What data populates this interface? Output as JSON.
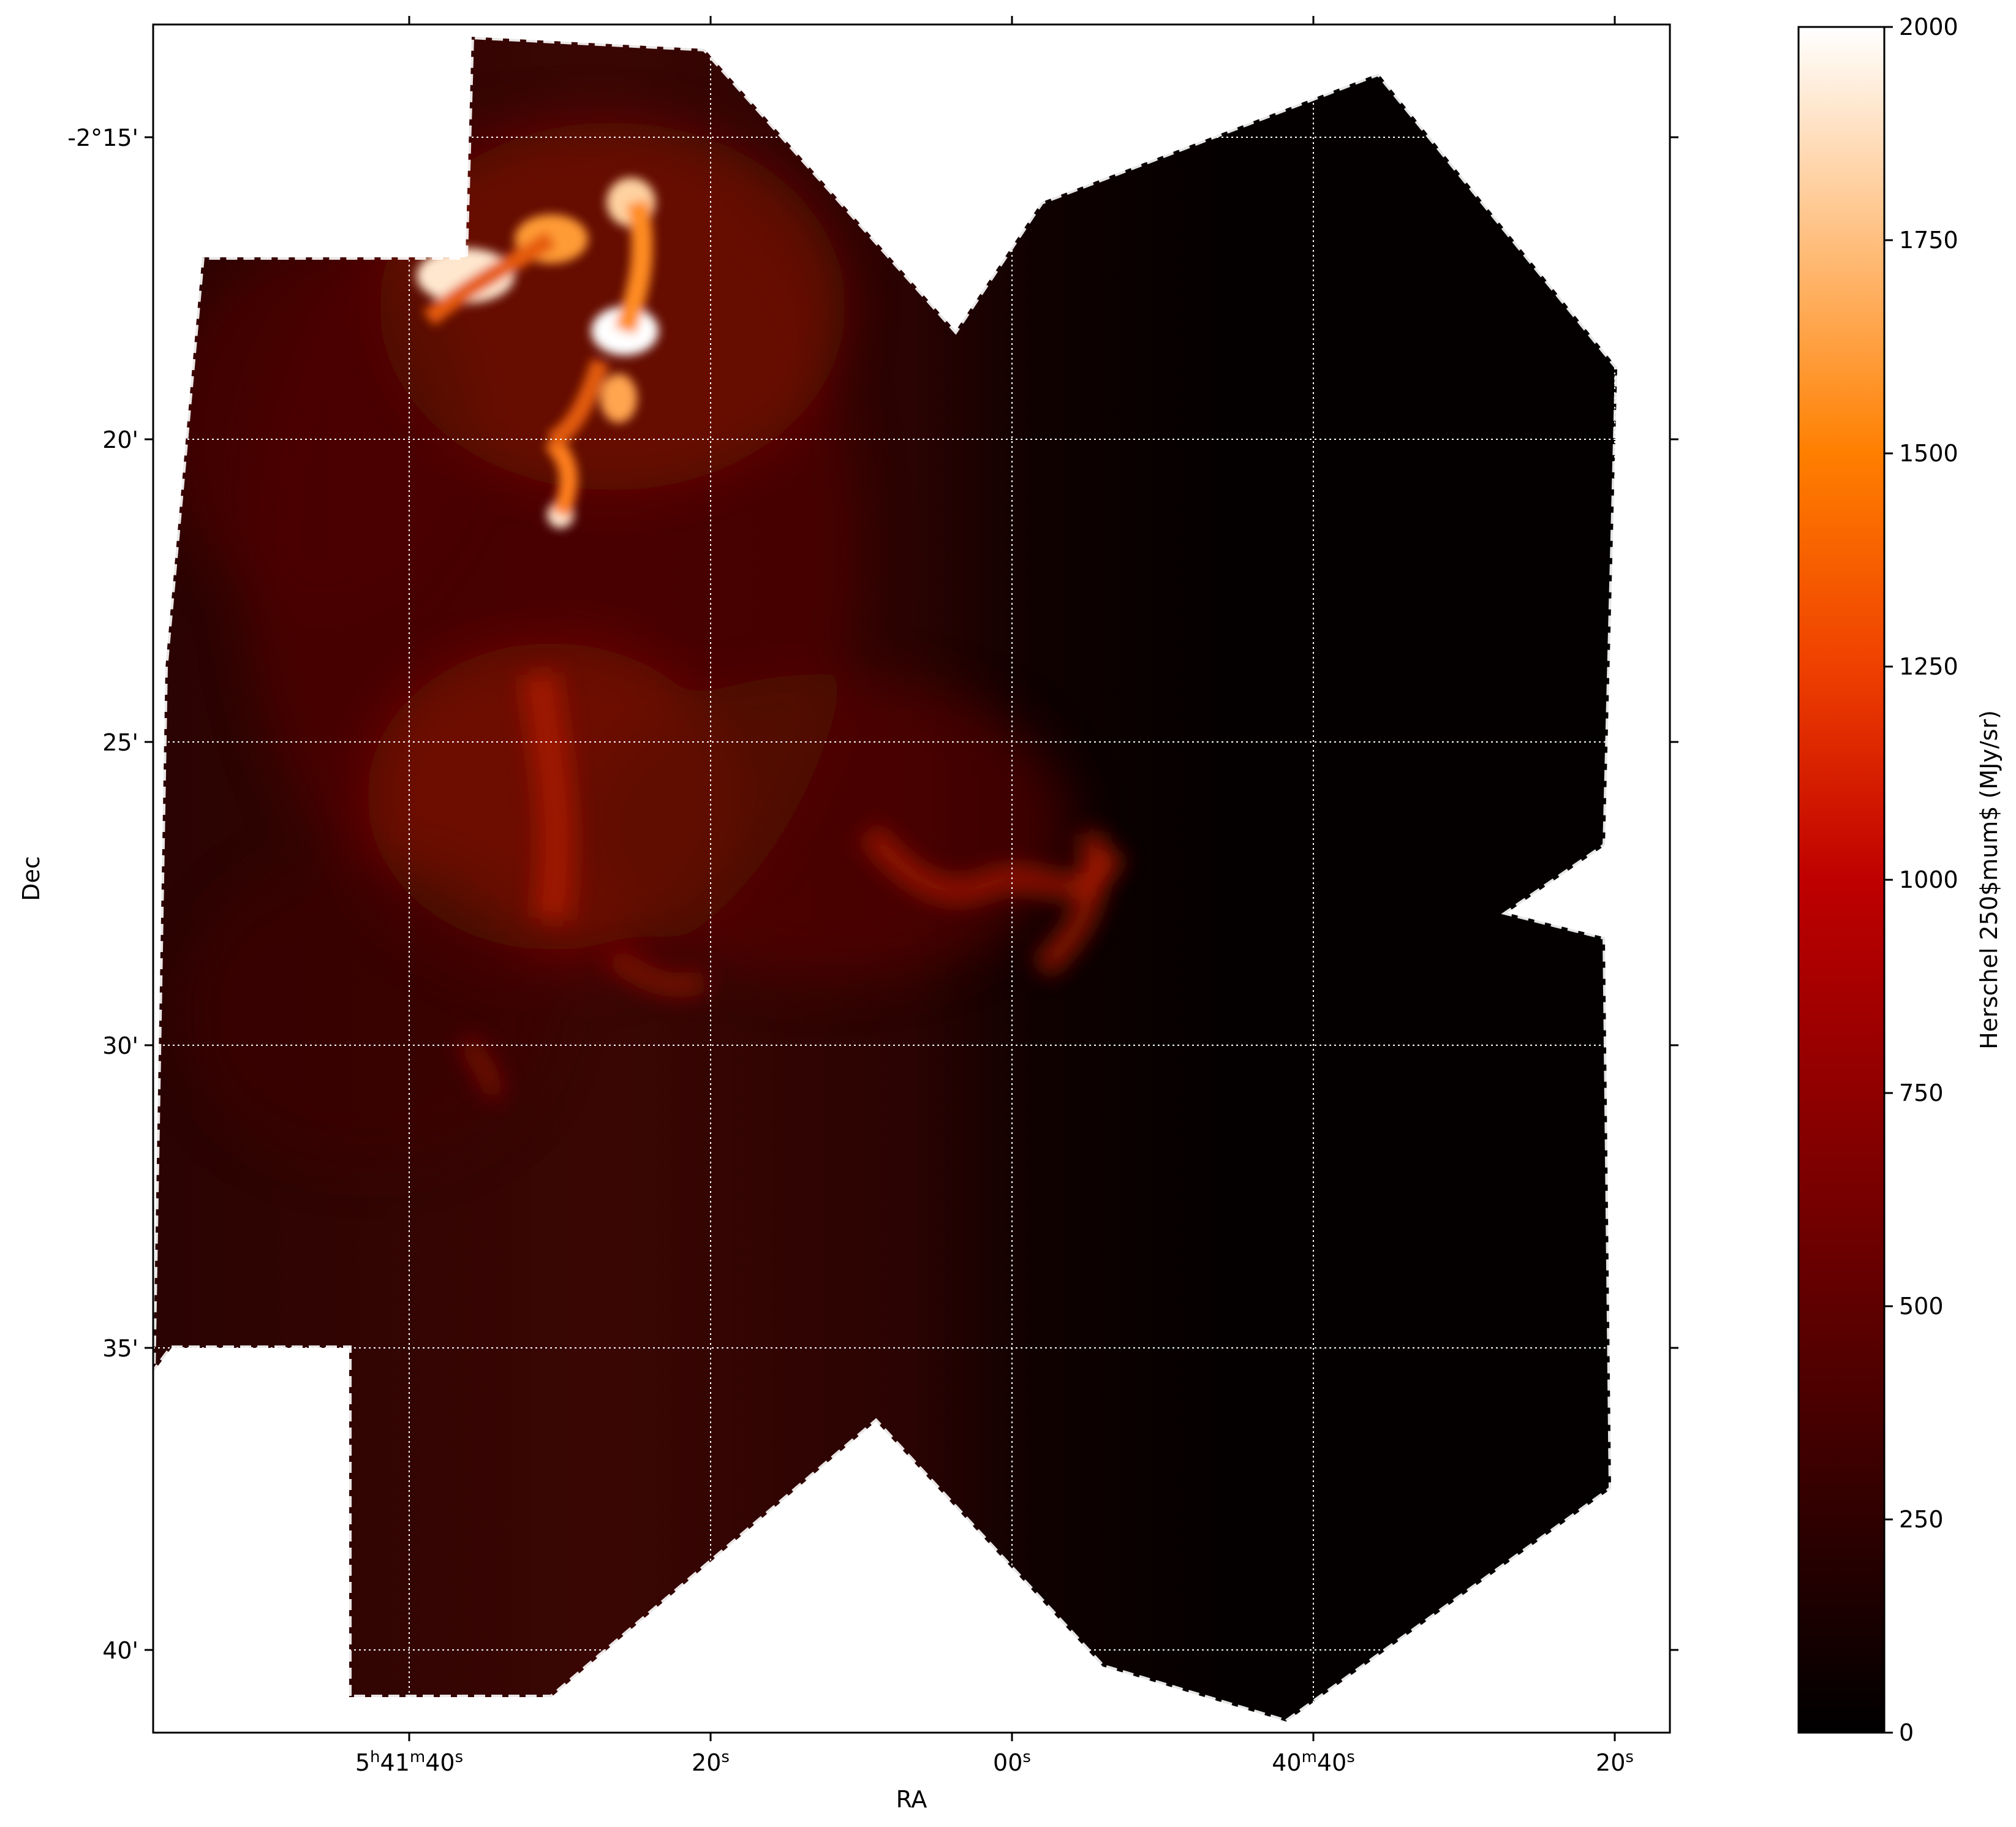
{
  "chart_data": {
    "type": "heatmap",
    "title": "",
    "xlabel": "RA",
    "ylabel": "Dec",
    "colorbar_label": "Herschel 250$mum$ (MJy/sr)",
    "colormap": "gist_heat",
    "colorbar_range": [
      0,
      2000
    ],
    "colorbar_ticks": [
      "0",
      "250",
      "500",
      "750",
      "1000",
      "1250",
      "1500",
      "1750",
      "2000"
    ],
    "x_ticks": [
      {
        "h": "5",
        "m": "41",
        "s": "40",
        "text": "5h41m40s"
      },
      {
        "s": "20",
        "text": "20s"
      },
      {
        "s": "00",
        "text": "00s"
      },
      {
        "m": "40",
        "s": "40",
        "text": "40m40s"
      },
      {
        "s": "20",
        "text": "20s"
      }
    ],
    "y_ticks": [
      "-2°15'",
      "20'",
      "25'",
      "30'",
      "35'",
      "40'"
    ],
    "x_range_sec_ra": [
      5100,
      4998
    ],
    "y_range_arcmin_dec": [
      -13.2,
      -41.4
    ],
    "grid": true,
    "grid_style": "dotted white",
    "emission_features": [
      {
        "ra": "5h41m28s",
        "dec": "-2°16.2'",
        "peak": 2000
      },
      {
        "ra": "5h41m28s",
        "dec": "-2°18.2'",
        "peak": 2000
      },
      {
        "ra": "5h41m47s",
        "dec": "-2°17.5'",
        "peak": 2000
      },
      {
        "ra": "5h41m36s",
        "dec": "-2°16.8'",
        "peak": 1700
      },
      {
        "ra": "5h41m33s",
        "dec": "-2°21.2'",
        "peak": 1800
      },
      {
        "ra": "5h41m32s",
        "dec": "-2°20.3'",
        "peak": 1300
      },
      {
        "ra": "5h41m27s",
        "dec": "-2°19.5'",
        "peak": 1500
      },
      {
        "ra": "5h41m34s",
        "dec": "-2°25.5'",
        "peak": 1100
      },
      {
        "ra": "5h41m10s",
        "dec": "-2°27.5'",
        "peak": 900
      },
      {
        "ra": "5h41m04s",
        "dec": "-2°28.0'",
        "peak": 950
      },
      {
        "ra": "5h41m22s",
        "dec": "-2°29.0'",
        "peak": 800
      }
    ]
  }
}
